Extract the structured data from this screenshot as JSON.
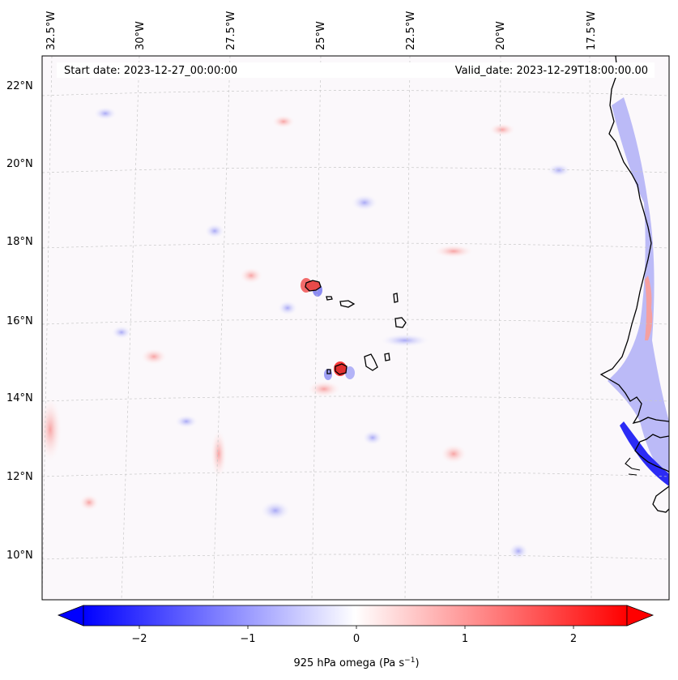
{
  "map": {
    "header": {
      "start_date": "Start date: 2023-12-27_00:00:00",
      "valid_date": "Valid_date: 2023-12-29T18:00:00.00"
    },
    "lon_labels": [
      "32.5°W",
      "30°W",
      "27.5°W",
      "25°W",
      "22.5°W",
      "20°W",
      "17.5°W"
    ],
    "lat_labels": [
      "22°N",
      "20°N",
      "18°N",
      "16°N",
      "14°N",
      "12°N",
      "10°N"
    ],
    "colorbar": {
      "ticks": [
        "−2",
        "−1",
        "0",
        "1",
        "2"
      ],
      "label": "925 hPa omega (Pa s",
      "label_sup": "−1",
      "label_close": ")",
      "colormap": "bwr",
      "min_color": "#0000ff",
      "mid_color": "#ffffff",
      "max_color": "#ff0000"
    },
    "colors": {
      "coastline": "#000000",
      "gridline": "#bdbdbd"
    },
    "features": {
      "islands": "Cape Verde",
      "coast": "West Africa"
    }
  }
}
